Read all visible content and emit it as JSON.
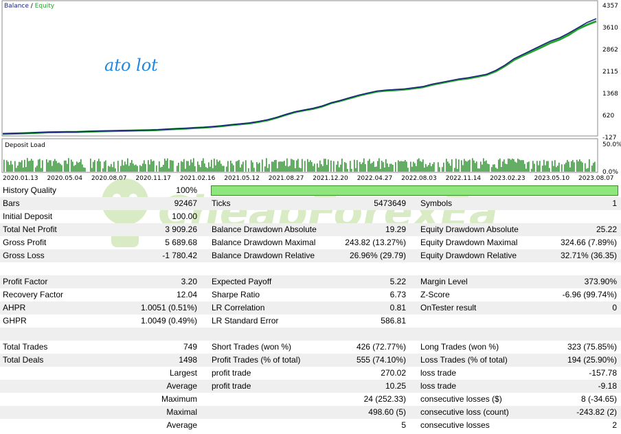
{
  "chart": {
    "legend": {
      "balance": "Balance",
      "sep": " / ",
      "equity": "Equity"
    },
    "annotation": "ato lot",
    "y_ticks": [
      "4357",
      "3610",
      "2862",
      "2115",
      "1368",
      "620",
      "-127"
    ],
    "x_ticks": [
      "2020.01.13",
      "2020.05.04",
      "2020.08.07",
      "2020.11.17",
      "2021.02.16",
      "2021.05.12",
      "2021.08.27",
      "2021.12.20",
      "2022.04.27",
      "2022.08.03",
      "2022.11.14",
      "2023.02.23",
      "2023.05.10",
      "2023.08.07"
    ],
    "deposit_load": {
      "title": "Deposit Load",
      "top_label": "50.0%",
      "bottom_label": "0.0%"
    },
    "colors": {
      "balance": "#1a237e",
      "equity": "#22a32a",
      "deposit": "#2ba52b",
      "quality": "#8ee67c"
    }
  },
  "chart_data": {
    "type": "line",
    "ylim": [
      -127,
      4357
    ],
    "series": [
      {
        "name": "Balance",
        "values": [
          0,
          5,
          12,
          22,
          40,
          48,
          52,
          60,
          58,
          70,
          80,
          88,
          95,
          102,
          105,
          112,
          120,
          130,
          150,
          165,
          180,
          200,
          215,
          235,
          265,
          300,
          330,
          360,
          410,
          470,
          550,
          650,
          740,
          800,
          860,
          940,
          1050,
          1130,
          1220,
          1310,
          1380,
          1450,
          1480,
          1500,
          1520,
          1560,
          1600,
          1680,
          1740,
          1800,
          1860,
          1900,
          1960,
          2020,
          2150,
          2330,
          2550,
          2700,
          2850,
          3000,
          3150,
          3260,
          3420,
          3600,
          3780,
          3909
        ]
      },
      {
        "name": "Equity",
        "values": [
          -10,
          0,
          8,
          18,
          32,
          45,
          48,
          56,
          52,
          66,
          74,
          84,
          90,
          96,
          100,
          108,
          114,
          124,
          142,
          158,
          172,
          190,
          205,
          228,
          256,
          290,
          320,
          350,
          398,
          455,
          540,
          640,
          730,
          790,
          845,
          925,
          1040,
          1115,
          1205,
          1290,
          1365,
          1430,
          1460,
          1480,
          1500,
          1540,
          1580,
          1660,
          1720,
          1780,
          1840,
          1880,
          1935,
          2000,
          2120,
          2300,
          2510,
          2660,
          2800,
          2940,
          3090,
          3200,
          3360,
          3560,
          3700,
          3820
        ]
      }
    ]
  },
  "stats": {
    "history_quality": {
      "label": "History Quality",
      "value": "100%"
    },
    "rows": [
      {
        "c1l": "Bars",
        "c1v": "92467",
        "c2l": "Ticks",
        "c2v": "5473649",
        "c3l": "Symbols",
        "c3v": "1"
      },
      {
        "c1l": "Initial Deposit",
        "c1v": "100.00",
        "c2l": "",
        "c2v": "",
        "c3l": "",
        "c3v": ""
      },
      {
        "c1l": "Total Net Profit",
        "c1v": "3 909.26",
        "c2l": "Balance Drawdown Absolute",
        "c2v": "19.29",
        "c3l": "Equity Drawdown Absolute",
        "c3v": "25.22"
      },
      {
        "c1l": "Gross Profit",
        "c1v": "5 689.68",
        "c2l": "Balance Drawdown Maximal",
        "c2v": "243.82 (13.27%)",
        "c3l": "Equity Drawdown Maximal",
        "c3v": "324.66 (7.89%)"
      },
      {
        "c1l": "Gross Loss",
        "c1v": "-1 780.42",
        "c2l": "Balance Drawdown Relative",
        "c2v": "26.96% (29.79)",
        "c3l": "Equity Drawdown Relative",
        "c3v": "32.71% (36.35)"
      },
      {
        "c1l": "",
        "c1v": "",
        "c2l": "",
        "c2v": "",
        "c3l": "",
        "c3v": ""
      },
      {
        "c1l": "Profit Factor",
        "c1v": "3.20",
        "c2l": "Expected Payoff",
        "c2v": "5.22",
        "c3l": "Margin Level",
        "c3v": "373.90%"
      },
      {
        "c1l": "Recovery Factor",
        "c1v": "12.04",
        "c2l": "Sharpe Ratio",
        "c2v": "6.73",
        "c3l": "Z-Score",
        "c3v": "-6.96 (99.74%)"
      },
      {
        "c1l": "AHPR",
        "c1v": "1.0051 (0.51%)",
        "c2l": "LR Correlation",
        "c2v": "0.81",
        "c3l": "OnTester result",
        "c3v": "0"
      },
      {
        "c1l": "GHPR",
        "c1v": "1.0049 (0.49%)",
        "c2l": "LR Standard Error",
        "c2v": "586.81",
        "c3l": "",
        "c3v": ""
      },
      {
        "c1l": "",
        "c1v": "",
        "c2l": "",
        "c2v": "",
        "c3l": "",
        "c3v": ""
      },
      {
        "c1l": "Total Trades",
        "c1v": "749",
        "c2l": "Short Trades (won %)",
        "c2v": "426 (72.77%)",
        "c3l": "Long Trades (won %)",
        "c3v": "323 (75.85%)"
      },
      {
        "c1l": "Total Deals",
        "c1v": "1498",
        "c2l": "Profit Trades (% of total)",
        "c2v": "555 (74.10%)",
        "c3l": "Loss Trades (% of total)",
        "c3v": "194 (25.90%)"
      },
      {
        "c1l": "",
        "sub": "Largest",
        "c2l": "profit trade",
        "c2v": "270.02",
        "c3l": "loss trade",
        "c3v": "-157.78"
      },
      {
        "c1l": "",
        "sub": "Average",
        "c2l": "profit trade",
        "c2v": "10.25",
        "c3l": "loss trade",
        "c3v": "-9.18"
      },
      {
        "c1l": "",
        "sub": "Maximum",
        "c2l": "",
        "c2v": "24 (252.33)",
        "c3l": "consecutive losses ($)",
        "c3v": "8 (-34.65)"
      },
      {
        "c1l": "",
        "sub": "Maximal",
        "c2l": "",
        "c2v": "498.60 (5)",
        "c3l": "consecutive loss (count)",
        "c3v": "-243.82 (2)"
      },
      {
        "c1l": "",
        "sub": "Average",
        "c2l": "",
        "c2v": "5",
        "c3l": "consecutive losses",
        "c3v": "2"
      }
    ]
  },
  "watermark": {
    "text": "CheapForexEa"
  }
}
